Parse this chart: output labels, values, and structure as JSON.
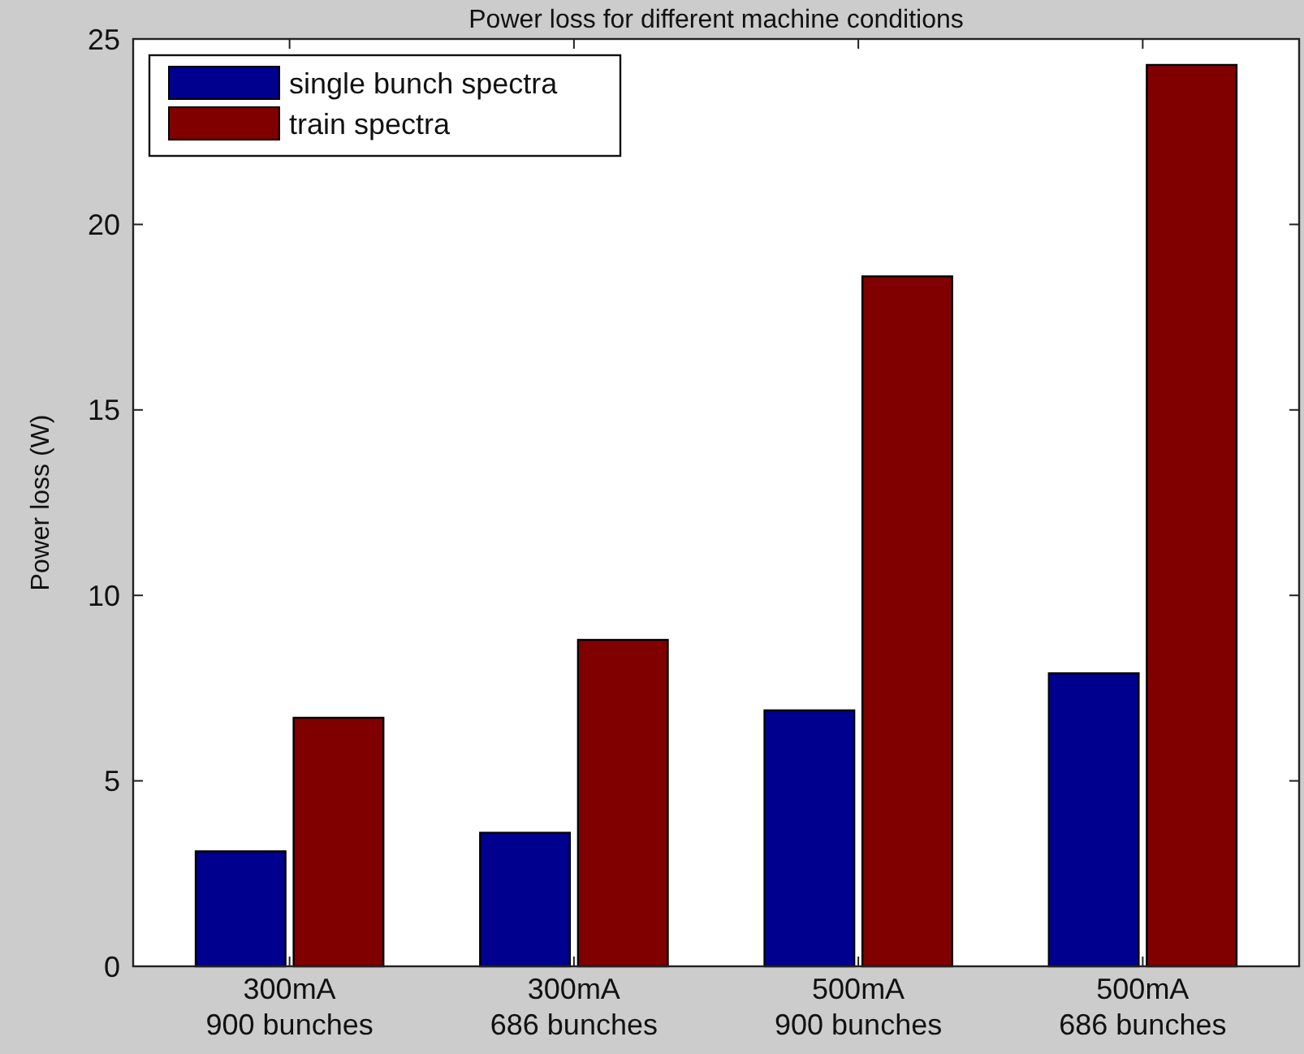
{
  "chart_data": {
    "type": "bar",
    "title": "Power loss for different machine conditions",
    "ylabel": "Power loss (W)",
    "categories": [
      "300mA\n900 bunches",
      "300mA\n686 bunches",
      "500mA\n900 bunches",
      "500mA\n686 bunches"
    ],
    "series": [
      {
        "name": "single bunch spectra",
        "color": "#00008f",
        "values": [
          3.1,
          3.6,
          6.9,
          7.9
        ]
      },
      {
        "name": "train spectra",
        "color": "#800000",
        "values": [
          6.7,
          8.8,
          18.6,
          24.3
        ]
      }
    ],
    "ylim": [
      0,
      25
    ],
    "yticks": [
      0,
      5,
      10,
      15,
      20,
      25
    ],
    "grid": false,
    "legend": "top left"
  }
}
